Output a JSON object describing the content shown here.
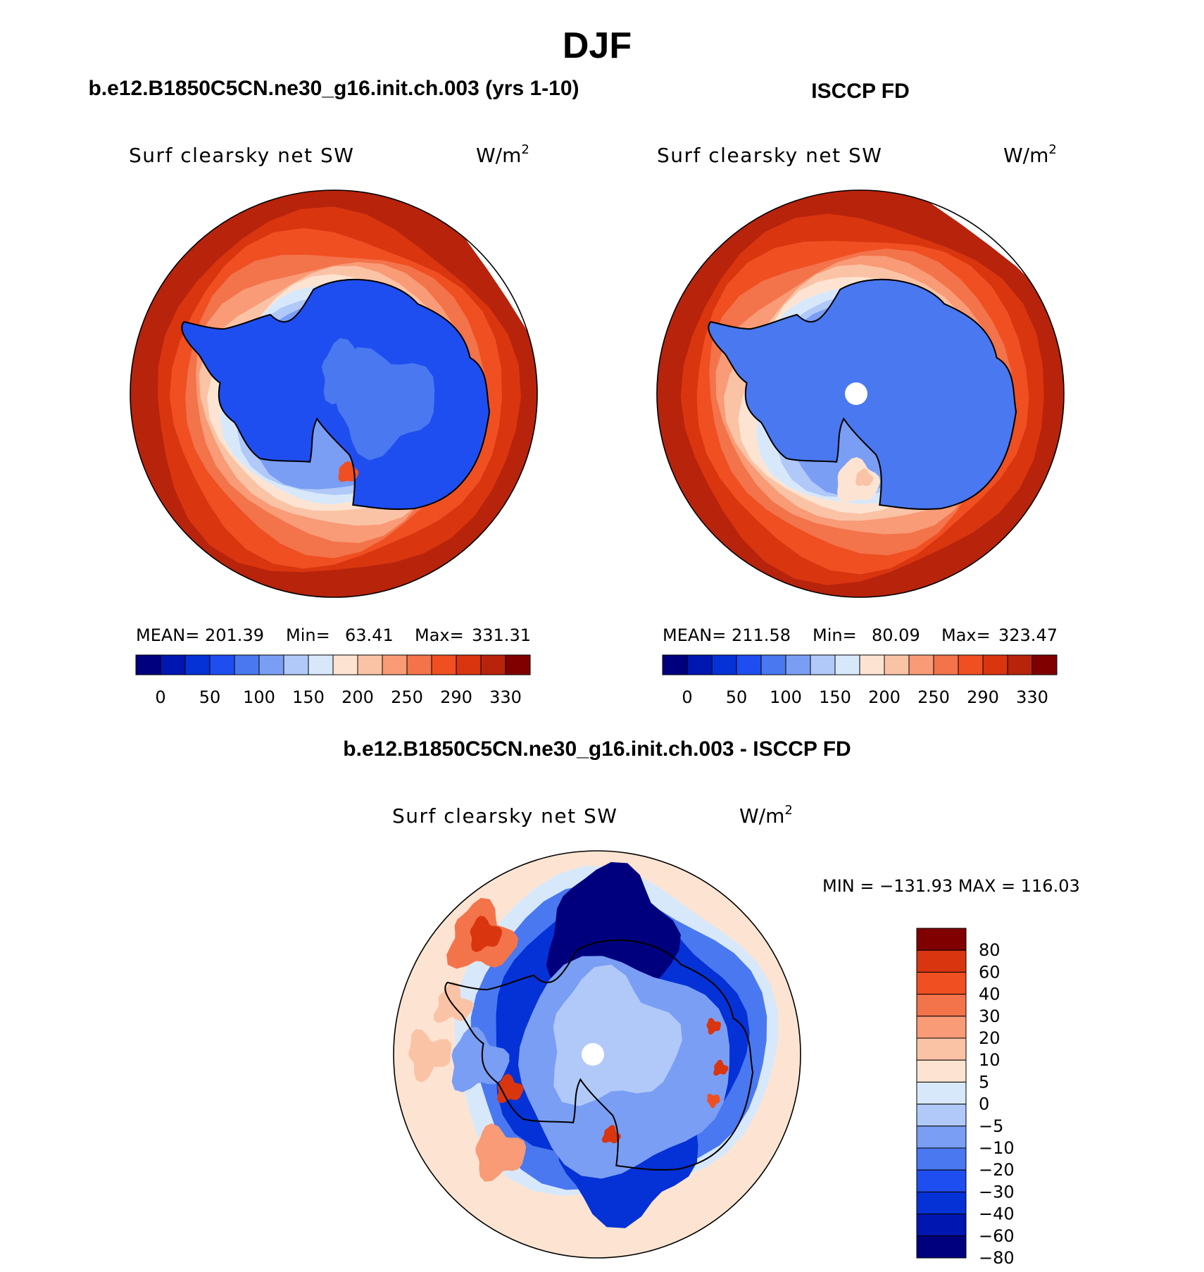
{
  "figure_title": "DJF",
  "colors": {
    "abs_levels": [
      "#00007f",
      "#0016b0",
      "#0532d6",
      "#1f4ef0",
      "#4a78f0",
      "#7a9ef4",
      "#b0c9f8",
      "#d8e8fb",
      "#fde4d2",
      "#fbc3a6",
      "#f89b76",
      "#f3734a",
      "#f04f22",
      "#d9350f",
      "#b8230c",
      "#800000"
    ],
    "diff_levels": [
      "#00007f",
      "#0016b0",
      "#0532d6",
      "#1f4ef0",
      "#4a78f0",
      "#7a9ef4",
      "#b0c9f8",
      "#d8e8fb",
      "#fde4d2",
      "#fbc3a6",
      "#f89b76",
      "#f3734a",
      "#f04f22",
      "#d9350f",
      "#800000"
    ],
    "coast": "#000000",
    "missing": "#ffffff"
  },
  "chart_data": [
    {
      "type": "heatmap",
      "panel": "model",
      "title": "b.e12.B1850C5CN.ne30_g16.init.ch.003 (yrs 1-10)",
      "variable": "Surf clearsky net SW",
      "units_base": "W/m",
      "units_exp": "2",
      "stats": {
        "mean_label": "MEAN=",
        "mean": "201.39",
        "min_label": "Min=",
        "min": "63.41",
        "max_label": "Max=",
        "max": "331.31"
      },
      "colorbar_ticks": [
        "0",
        "50",
        "100",
        "150",
        "200",
        "250",
        "290",
        "330"
      ],
      "levels": [
        0,
        25,
        50,
        75,
        100,
        125,
        150,
        175,
        200,
        225,
        250,
        270,
        290,
        310,
        330
      ],
      "projection": "south-polar-stereographic",
      "region": "Antarctica / Southern Ocean",
      "antarctic_plateau_value": 75,
      "outer_ring_value": 325
    },
    {
      "type": "heatmap",
      "panel": "observations",
      "title": "ISCCP FD",
      "variable": "Surf clearsky net SW",
      "units_base": "W/m",
      "units_exp": "2",
      "stats": {
        "mean_label": "MEAN=",
        "mean": "211.58",
        "min_label": "Min=",
        "min": "80.09",
        "max_label": "Max=",
        "max": "323.47"
      },
      "colorbar_ticks": [
        "0",
        "50",
        "100",
        "150",
        "200",
        "250",
        "290",
        "330"
      ],
      "levels": [
        0,
        25,
        50,
        75,
        100,
        125,
        150,
        175,
        200,
        225,
        250,
        270,
        290,
        310,
        330
      ],
      "projection": "south-polar-stereographic",
      "region": "Antarctica / Southern Ocean",
      "antarctic_plateau_value": 95,
      "outer_ring_value": 318
    },
    {
      "type": "heatmap",
      "panel": "difference",
      "title": "b.e12.B1850C5CN.ne30_g16.init.ch.003 - ISCCP FD",
      "variable": "Surf clearsky net SW",
      "units_base": "W/m",
      "units_exp": "2",
      "stats_text": "MIN = −131.93 MAX = 116.03",
      "min": -131.93,
      "max": 116.03,
      "colorbar_ticks": [
        "80",
        "60",
        "40",
        "30",
        "20",
        "10",
        "5",
        "0",
        "−5",
        "−10",
        "−20",
        "−30",
        "−40",
        "−60",
        "−80"
      ],
      "levels": [
        -80,
        -60,
        -40,
        -30,
        -20,
        -10,
        -5,
        0,
        5,
        10,
        20,
        30,
        40,
        60,
        80
      ],
      "projection": "south-polar-stereographic",
      "region": "Antarctica / Southern Ocean"
    }
  ]
}
